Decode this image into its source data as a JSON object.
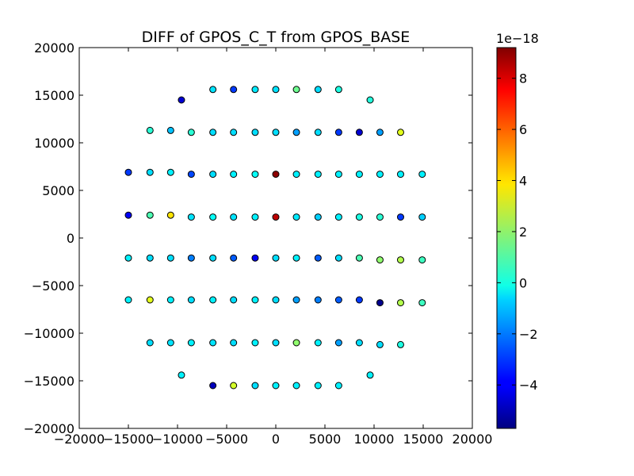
{
  "chart_data": {
    "type": "scatter",
    "title": "DIFF of GPOS_C_T from GPOS_BASE",
    "xlabel": "",
    "ylabel": "",
    "xlim": [
      -20000,
      20000
    ],
    "ylim": [
      -20000,
      20000
    ],
    "xticks": [
      -20000,
      -15000,
      -10000,
      -5000,
      0,
      5000,
      10000,
      15000,
      20000
    ],
    "yticks": [
      -20000,
      -15000,
      -10000,
      -5000,
      0,
      5000,
      10000,
      15000,
      20000
    ],
    "xtick_labels": [
      "−20000",
      "−15000",
      "−10000",
      "−5000",
      "0",
      "5000",
      "10000",
      "15000",
      "20000"
    ],
    "ytick_labels": [
      "−20000",
      "−15000",
      "−10000",
      "−5000",
      "0",
      "5000",
      "10000",
      "15000",
      "20000"
    ],
    "grid": false,
    "colorbar": {
      "colormap": "jet",
      "range": [
        -5.7,
        9.2
      ],
      "scale_label": "1e−18",
      "ticks": [
        -4,
        -2,
        0,
        2,
        4,
        6,
        8
      ],
      "tick_labels": [
        "−4",
        "−2",
        "0",
        "2",
        "4",
        "6",
        "8"
      ]
    },
    "points": [
      {
        "x": -9600,
        "y": 14500,
        "c": -4.5
      },
      {
        "x": -6400,
        "y": 15600,
        "c": -0.5
      },
      {
        "x": -4300,
        "y": 15600,
        "c": -3.0
      },
      {
        "x": -2100,
        "y": 15600,
        "c": -0.4
      },
      {
        "x": 0,
        "y": 15600,
        "c": -0.5
      },
      {
        "x": 2100,
        "y": 15600,
        "c": 1.5
      },
      {
        "x": 4300,
        "y": 15600,
        "c": -0.6
      },
      {
        "x": 6400,
        "y": 15600,
        "c": 0.3
      },
      {
        "x": 9600,
        "y": 14500,
        "c": 0.4
      },
      {
        "x": -12800,
        "y": 11300,
        "c": 0.5
      },
      {
        "x": -10700,
        "y": 11300,
        "c": -1.0
      },
      {
        "x": -8600,
        "y": 11100,
        "c": 0.5
      },
      {
        "x": -6400,
        "y": 11100,
        "c": -0.6
      },
      {
        "x": -4300,
        "y": 11100,
        "c": -0.6
      },
      {
        "x": -2100,
        "y": 11100,
        "c": -0.6
      },
      {
        "x": 0,
        "y": 11100,
        "c": -0.6
      },
      {
        "x": 2100,
        "y": 11100,
        "c": -1.5
      },
      {
        "x": 4300,
        "y": 11100,
        "c": -0.6
      },
      {
        "x": 6400,
        "y": 11100,
        "c": -3.0
      },
      {
        "x": 8500,
        "y": 11100,
        "c": -4.5
      },
      {
        "x": 10600,
        "y": 11100,
        "c": -1.5
      },
      {
        "x": 12700,
        "y": 11100,
        "c": 3.2
      },
      {
        "x": -15000,
        "y": 6900,
        "c": -3.0
      },
      {
        "x": -12800,
        "y": 6900,
        "c": -0.6
      },
      {
        "x": -10700,
        "y": 6900,
        "c": -0.3
      },
      {
        "x": -8600,
        "y": 6700,
        "c": -2.8
      },
      {
        "x": -6400,
        "y": 6700,
        "c": -0.6
      },
      {
        "x": -4300,
        "y": 6700,
        "c": -0.3
      },
      {
        "x": -2100,
        "y": 6700,
        "c": 0.0
      },
      {
        "x": 0,
        "y": 6700,
        "c": 9.0
      },
      {
        "x": 2100,
        "y": 6700,
        "c": -0.3
      },
      {
        "x": 4300,
        "y": 6700,
        "c": -0.3
      },
      {
        "x": 6400,
        "y": 6700,
        "c": -0.3
      },
      {
        "x": 8500,
        "y": 6700,
        "c": -0.3
      },
      {
        "x": 10600,
        "y": 6700,
        "c": -0.3
      },
      {
        "x": 12700,
        "y": 6700,
        "c": -0.3
      },
      {
        "x": 14900,
        "y": 6700,
        "c": -0.3
      },
      {
        "x": -15000,
        "y": 2400,
        "c": -4.0
      },
      {
        "x": -12800,
        "y": 2400,
        "c": 1.0
      },
      {
        "x": -10700,
        "y": 2400,
        "c": 4.0
      },
      {
        "x": -8600,
        "y": 2200,
        "c": -0.5
      },
      {
        "x": -6400,
        "y": 2200,
        "c": 0.0
      },
      {
        "x": -4300,
        "y": 2200,
        "c": -0.5
      },
      {
        "x": -2100,
        "y": 2200,
        "c": -0.3
      },
      {
        "x": 0,
        "y": 2200,
        "c": 8.3
      },
      {
        "x": 2100,
        "y": 2200,
        "c": -0.4
      },
      {
        "x": 4300,
        "y": 2200,
        "c": -0.8
      },
      {
        "x": 6400,
        "y": 2200,
        "c": -0.3
      },
      {
        "x": 8500,
        "y": 2200,
        "c": 0.3
      },
      {
        "x": 10600,
        "y": 2200,
        "c": 0.5
      },
      {
        "x": 12700,
        "y": 2200,
        "c": -3.0
      },
      {
        "x": 14900,
        "y": 2200,
        "c": -0.8
      },
      {
        "x": -15000,
        "y": -2100,
        "c": -0.3
      },
      {
        "x": -12800,
        "y": -2100,
        "c": -0.6
      },
      {
        "x": -10700,
        "y": -2100,
        "c": -0.6
      },
      {
        "x": -8600,
        "y": -2100,
        "c": -2.0
      },
      {
        "x": -6400,
        "y": -2100,
        "c": -0.6
      },
      {
        "x": -4300,
        "y": -2100,
        "c": -2.5
      },
      {
        "x": -2100,
        "y": -2100,
        "c": -4.0
      },
      {
        "x": 0,
        "y": -2100,
        "c": -0.6
      },
      {
        "x": 2100,
        "y": -2100,
        "c": -0.3
      },
      {
        "x": 4300,
        "y": -2100,
        "c": -2.5
      },
      {
        "x": 6400,
        "y": -2100,
        "c": -0.6
      },
      {
        "x": 8500,
        "y": -2100,
        "c": 1.0
      },
      {
        "x": 10600,
        "y": -2300,
        "c": 2.0
      },
      {
        "x": 12700,
        "y": -2300,
        "c": 2.5
      },
      {
        "x": 14900,
        "y": -2300,
        "c": 0.8
      },
      {
        "x": -15000,
        "y": -6500,
        "c": -0.3
      },
      {
        "x": -12800,
        "y": -6500,
        "c": 3.2
      },
      {
        "x": -10700,
        "y": -6500,
        "c": -0.3
      },
      {
        "x": -8600,
        "y": -6500,
        "c": -0.6
      },
      {
        "x": -6400,
        "y": -6500,
        "c": -0.3
      },
      {
        "x": -4300,
        "y": -6500,
        "c": -0.6
      },
      {
        "x": -2100,
        "y": -6500,
        "c": -0.3
      },
      {
        "x": 0,
        "y": -6500,
        "c": -0.6
      },
      {
        "x": 2100,
        "y": -6500,
        "c": -1.5
      },
      {
        "x": 4300,
        "y": -6500,
        "c": -2.0
      },
      {
        "x": 6400,
        "y": -6500,
        "c": -2.5
      },
      {
        "x": 8500,
        "y": -6500,
        "c": -3.0
      },
      {
        "x": 10600,
        "y": -6800,
        "c": -5.5
      },
      {
        "x": 12700,
        "y": -6800,
        "c": 2.5
      },
      {
        "x": 14900,
        "y": -6800,
        "c": 0.8
      },
      {
        "x": -12800,
        "y": -11000,
        "c": -0.6
      },
      {
        "x": -10700,
        "y": -11000,
        "c": -0.5
      },
      {
        "x": -8600,
        "y": -11000,
        "c": -0.3
      },
      {
        "x": -6400,
        "y": -11000,
        "c": -0.5
      },
      {
        "x": -4300,
        "y": -11000,
        "c": -0.6
      },
      {
        "x": -2100,
        "y": -11000,
        "c": -0.3
      },
      {
        "x": 0,
        "y": -11000,
        "c": -0.6
      },
      {
        "x": 2100,
        "y": -11000,
        "c": 2.0
      },
      {
        "x": 4300,
        "y": -11000,
        "c": -0.3
      },
      {
        "x": 6400,
        "y": -11000,
        "c": -1.5
      },
      {
        "x": 8500,
        "y": -11000,
        "c": -0.6
      },
      {
        "x": 10600,
        "y": -11200,
        "c": -0.6
      },
      {
        "x": 12700,
        "y": -11200,
        "c": 0.3
      },
      {
        "x": -9600,
        "y": -14400,
        "c": -0.3
      },
      {
        "x": -6400,
        "y": -15500,
        "c": -4.8
      },
      {
        "x": -4300,
        "y": -15500,
        "c": 3.0
      },
      {
        "x": -2100,
        "y": -15500,
        "c": -0.6
      },
      {
        "x": 0,
        "y": -15500,
        "c": -0.3
      },
      {
        "x": 2100,
        "y": -15500,
        "c": -0.3
      },
      {
        "x": 4300,
        "y": -15500,
        "c": -0.3
      },
      {
        "x": 6400,
        "y": -15500,
        "c": -0.3
      },
      {
        "x": 9600,
        "y": -14400,
        "c": -0.3
      }
    ]
  }
}
